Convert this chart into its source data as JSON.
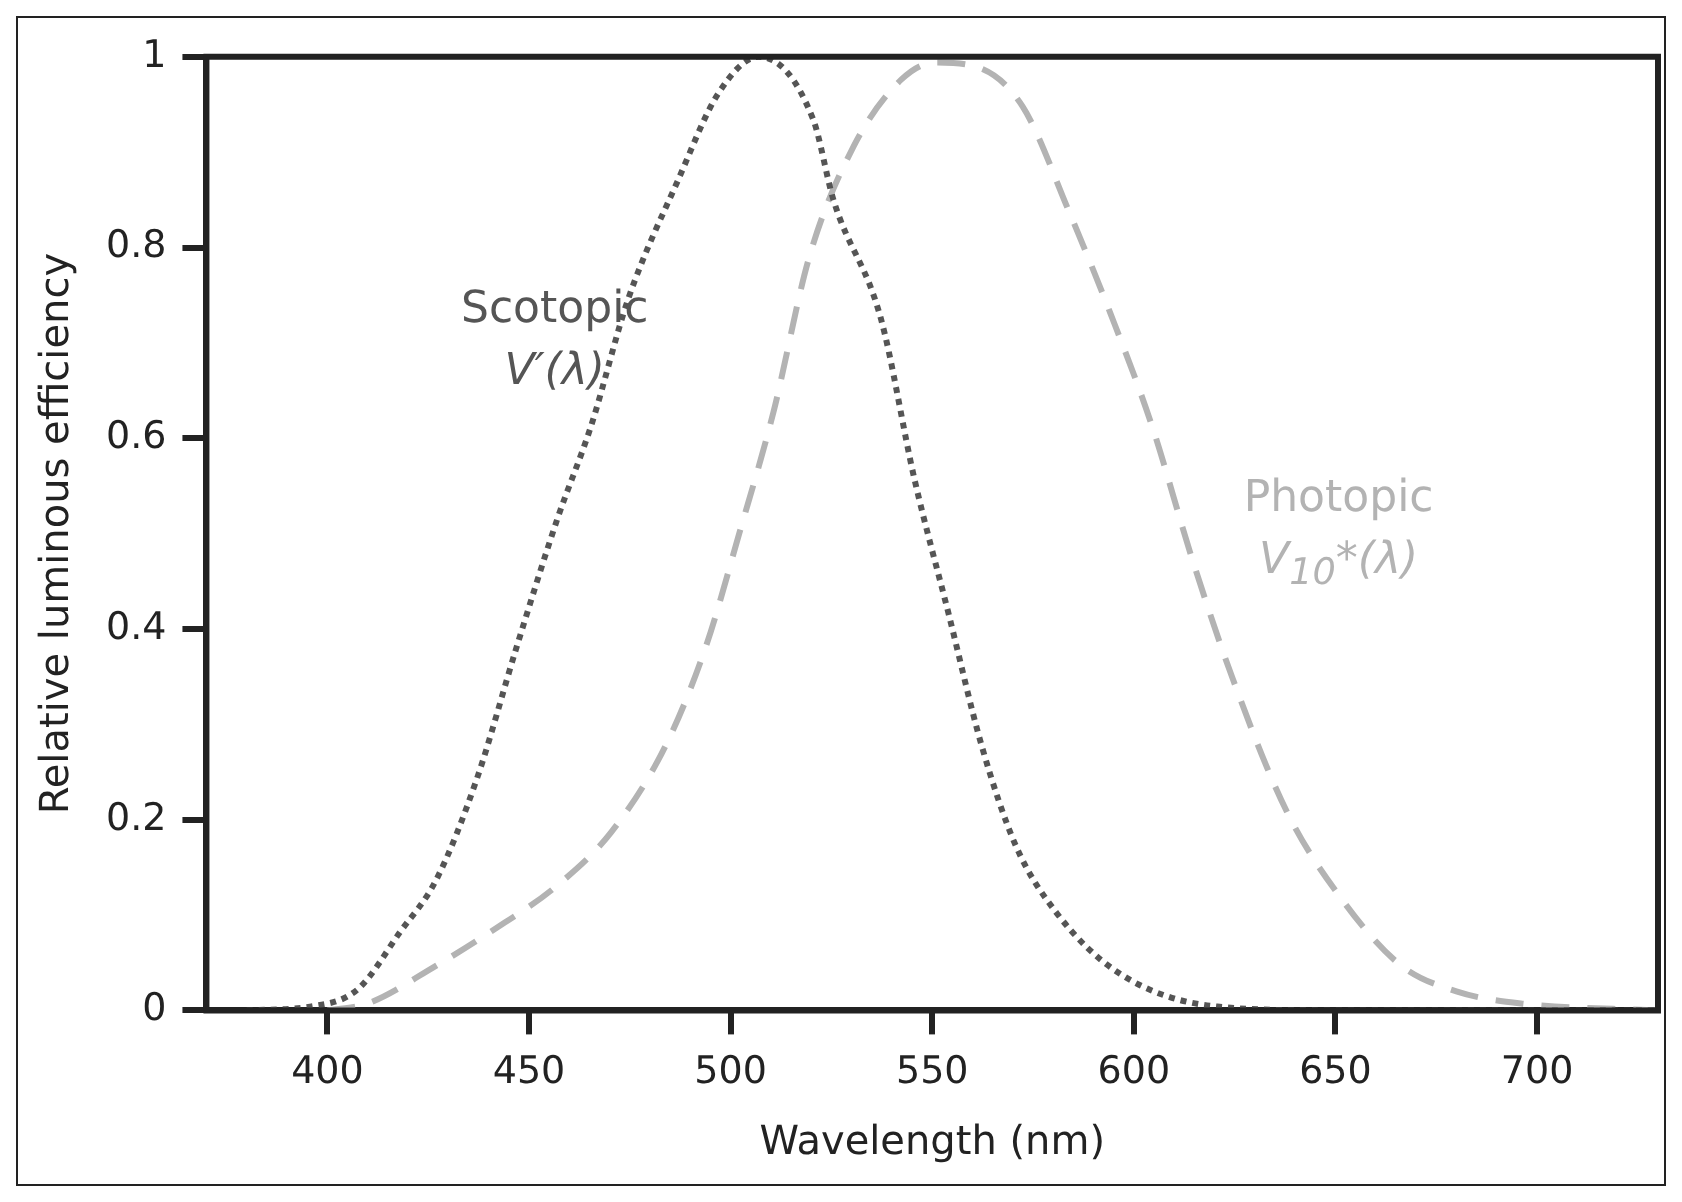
{
  "chart_data": {
    "type": "line",
    "xlabel": "Wavelength (nm)",
    "ylabel": "Relative luminous efficiency",
    "xlim": [
      370,
      730
    ],
    "ylim": [
      0,
      1
    ],
    "xticks": [
      400,
      450,
      500,
      550,
      600,
      650,
      700
    ],
    "yticks": [
      0,
      0.2,
      0.4,
      0.6,
      0.8,
      1
    ],
    "grid": false,
    "legend": false,
    "marker": "none",
    "series": [
      {
        "name": "Scotopic V′(λ)",
        "color": "#555555",
        "line_style": "dotted",
        "x": [
          380,
          395.7,
          407.5,
          418,
          427,
          437,
          447,
          457,
          465.4,
          474.6,
          487,
          497,
          507,
          520.5,
          525.5,
          537.3,
          545.6,
          554,
          562.3,
          570.7,
          580.7,
          596,
          620.7,
          650,
          700,
          730
        ],
        "values": [
          0,
          0.004,
          0.022,
          0.082,
          0.137,
          0.242,
          0.382,
          0.515,
          0.613,
          0.746,
          0.871,
          0.962,
          1,
          0.934,
          0.85,
          0.725,
          0.557,
          0.417,
          0.277,
          0.173,
          0.103,
          0.04,
          0.004,
          0,
          0,
          0
        ]
      },
      {
        "name": "Photopic V$_{10}$*(λ)",
        "color": "#b3b3b3",
        "line_style": "dashed",
        "x": [
          400,
          409.8,
          427,
          440.3,
          457,
          470.4,
          483.8,
          493.9,
          502.2,
          510.6,
          519.5,
          530.5,
          542.3,
          550.7,
          560.6,
          572.4,
          584,
          594.1,
          604.5,
          614.5,
          624.6,
          638,
          651.5,
          666,
          680,
          696.6,
          730
        ],
        "values": [
          0,
          0.007,
          0.047,
          0.082,
          0.131,
          0.187,
          0.277,
          0.382,
          0.501,
          0.627,
          0.79,
          0.906,
          0.976,
          0.994,
          0.99,
          0.948,
          0.837,
          0.732,
          0.613,
          0.473,
          0.347,
          0.208,
          0.117,
          0.048,
          0.02,
          0.007,
          0
        ]
      }
    ]
  }
}
